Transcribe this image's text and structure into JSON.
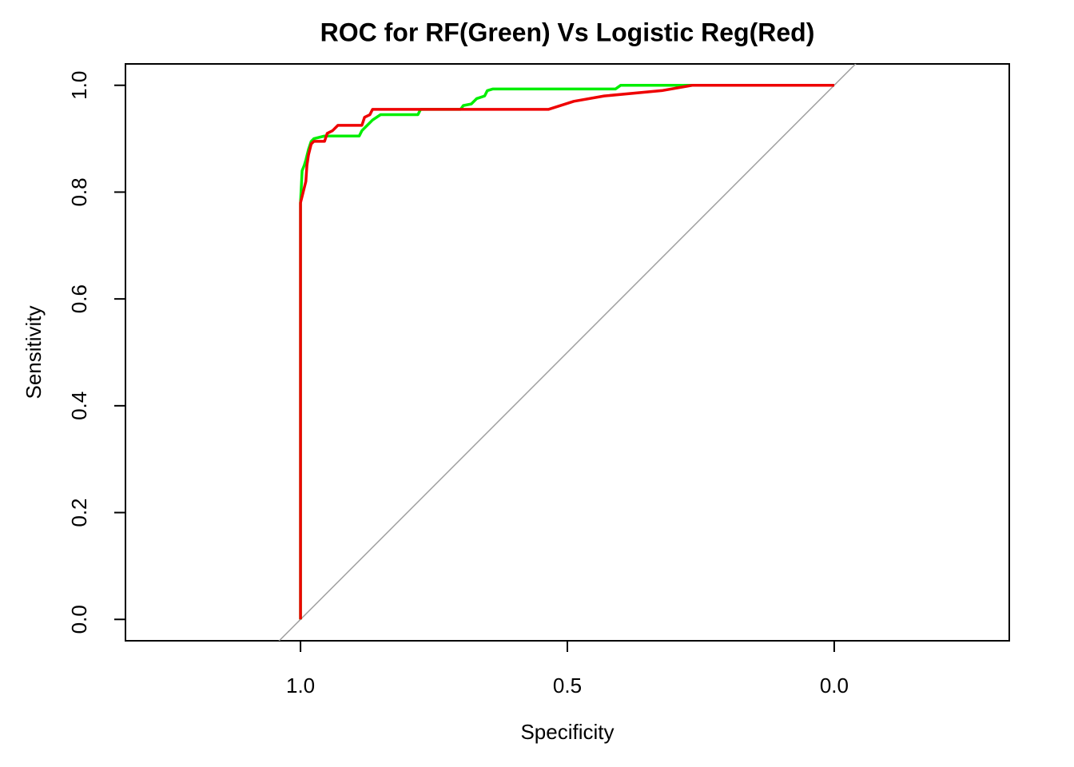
{
  "chart_data": {
    "type": "line",
    "title": "ROC for RF(Green) Vs Logistic Reg(Red)",
    "x_label": "Specificity",
    "y_label": "Sensitivity",
    "xlim": [
      1.328,
      -0.328
    ],
    "ylim": [
      -0.04,
      1.04
    ],
    "xticks": [
      {
        "value": 1,
        "label": "1.0"
      },
      {
        "value": 0.5,
        "label": "0.5"
      },
      {
        "value": 0,
        "label": "0.0"
      }
    ],
    "yticks": [
      {
        "value": 0,
        "label": "0.0"
      },
      {
        "value": 0.2,
        "label": "0.2"
      },
      {
        "value": 0.4,
        "label": "0.4"
      },
      {
        "value": 0.6,
        "label": "0.6"
      },
      {
        "value": 0.8,
        "label": "0.8"
      },
      {
        "value": 1,
        "label": "1.0"
      }
    ],
    "diagonal": true,
    "diagonal_color": "#a0a0a0",
    "series": [
      {
        "color": "#00ee00",
        "x": [
          1,
          1,
          0.997,
          0.993,
          0.99,
          0.985,
          0.98,
          0.975,
          0.955,
          0.89,
          0.885,
          0.875,
          0.865,
          0.85,
          0.78,
          0.775,
          0.7,
          0.695,
          0.68,
          0.67,
          0.655,
          0.65,
          0.64,
          0.41,
          0.4,
          0
        ],
        "values": [
          0,
          0.78,
          0.84,
          0.85,
          0.86,
          0.88,
          0.895,
          0.9,
          0.905,
          0.905,
          0.915,
          0.925,
          0.935,
          0.945,
          0.945,
          0.955,
          0.955,
          0.962,
          0.965,
          0.975,
          0.98,
          0.99,
          0.993,
          0.993,
          1,
          1
        ]
      },
      {
        "color": "#ee0000",
        "x": [
          1,
          1,
          0.995,
          0.99,
          0.988,
          0.985,
          0.98,
          0.975,
          0.955,
          0.95,
          0.94,
          0.93,
          0.885,
          0.88,
          0.87,
          0.865,
          0.535,
          0.488,
          0.431,
          0.323,
          0.266,
          0
        ],
        "values": [
          0,
          0.78,
          0.8,
          0.82,
          0.85,
          0.87,
          0.89,
          0.895,
          0.895,
          0.91,
          0.915,
          0.925,
          0.925,
          0.94,
          0.945,
          0.955,
          0.955,
          0.97,
          0.98,
          0.99,
          1,
          1
        ]
      }
    ]
  }
}
